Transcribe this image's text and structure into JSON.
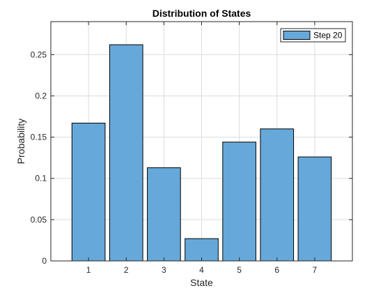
{
  "chart_data": {
    "type": "bar",
    "title": "Distribution of States",
    "xlabel": "State",
    "ylabel": "Probability",
    "categories": [
      "1",
      "2",
      "3",
      "4",
      "5",
      "6",
      "7"
    ],
    "series": [
      {
        "name": "Step 20",
        "values": [
          0.167,
          0.262,
          0.113,
          0.027,
          0.144,
          0.16,
          0.126
        ]
      }
    ],
    "ylim": [
      0,
      0.29
    ],
    "yticks": [
      0,
      0.05,
      0.1,
      0.15,
      0.2,
      0.25
    ],
    "ytick_labels": [
      "0",
      "0.05",
      "0.1",
      "0.15",
      "0.2",
      "0.25"
    ],
    "grid": true,
    "legend_position": "top-right",
    "bar_color": "#66a8d9",
    "bar_edge_color": "#000000"
  }
}
